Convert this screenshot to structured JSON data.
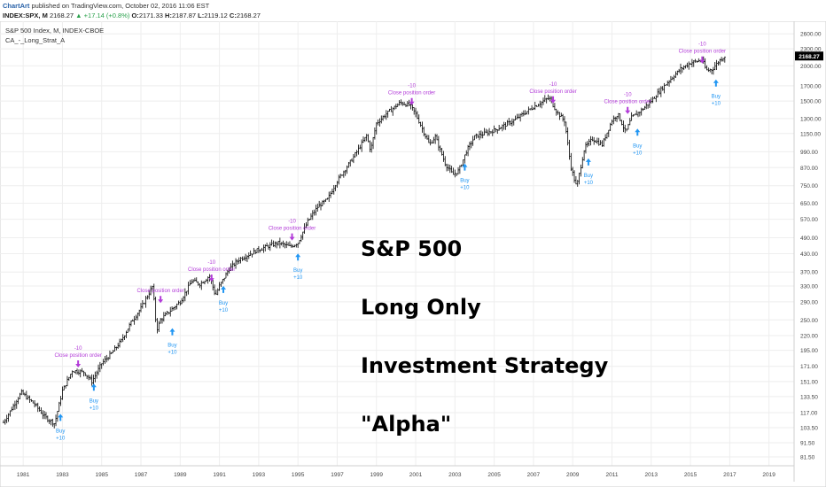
{
  "header": {
    "brand": "ChartArt",
    "published": " published on TradingView.com, October 02, 2016 11:06 EST",
    "symbol": "INDEX:SPX, M",
    "last": "2168.27",
    "change": "▲ +17.14 (+0.8%)",
    "o_label": "O:",
    "o": "2171.33",
    "h_label": "H:",
    "h": "2187.87",
    "l_label": "L:",
    "l": "2119.12",
    "c_label": "C:",
    "c": "2168.27"
  },
  "legend": {
    "line1": "S&P 500 Index, M, INDEX-CBOE",
    "line2": "CA_-_Long_Strat_A"
  },
  "overlay_text": [
    "S&P 500",
    "Long Only",
    "Investment Strategy",
    "\"Alpha\""
  ],
  "colors": {
    "bars": "#000000",
    "buy": "#2196f3",
    "close": "#b23bd8",
    "grid": "#eeeeee",
    "price_tag": "#000000"
  },
  "chart_data": {
    "type": "bar",
    "scale": "log",
    "ylim": [
      78,
      2800
    ],
    "xlim": [
      1980,
      2020.1
    ],
    "y_ticks": [
      "2600.00",
      "2300.00",
      "2000.00",
      "1700.00",
      "1500.00",
      "1300.00",
      "1150.00",
      "990.00",
      "870.00",
      "750.00",
      "650.00",
      "570.00",
      "490.00",
      "430.00",
      "370.00",
      "330.00",
      "290.00",
      "250.00",
      "220.00",
      "195.00",
      "171.00",
      "151.00",
      "133.50",
      "117.00",
      "103.50",
      "91.50",
      "81.50"
    ],
    "x_ticks": [
      "1981",
      "1983",
      "1985",
      "1987",
      "1989",
      "1991",
      "1993",
      "1995",
      "1997",
      "1999",
      "2001",
      "2003",
      "2005",
      "2007",
      "2009",
      "2011",
      "2013",
      "2015",
      "2017",
      "2019"
    ],
    "last_price_label": "2168.27",
    "series": [
      {
        "name": "S&P 500 Index",
        "anchors": [
          [
            1980.0,
            108
          ],
          [
            1980.9,
            138
          ],
          [
            1981.6,
            125
          ],
          [
            1982.1,
            113
          ],
          [
            1982.6,
            107
          ],
          [
            1983.0,
            140
          ],
          [
            1983.5,
            165
          ],
          [
            1984.1,
            163
          ],
          [
            1984.5,
            151
          ],
          [
            1985.0,
            175
          ],
          [
            1985.5,
            190
          ],
          [
            1986.0,
            211
          ],
          [
            1986.5,
            245
          ],
          [
            1987.0,
            275
          ],
          [
            1987.6,
            330
          ],
          [
            1987.8,
            230
          ],
          [
            1988.0,
            250
          ],
          [
            1988.5,
            270
          ],
          [
            1989.0,
            290
          ],
          [
            1989.6,
            345
          ],
          [
            1990.0,
            335
          ],
          [
            1990.5,
            358
          ],
          [
            1990.8,
            305
          ],
          [
            1991.0,
            330
          ],
          [
            1991.5,
            380
          ],
          [
            1992.0,
            410
          ],
          [
            1993.0,
            445
          ],
          [
            1994.0,
            470
          ],
          [
            1994.6,
            455
          ],
          [
            1995.0,
            470
          ],
          [
            1995.5,
            560
          ],
          [
            1996.0,
            630
          ],
          [
            1996.5,
            670
          ],
          [
            1997.0,
            780
          ],
          [
            1997.8,
            940
          ],
          [
            1998.5,
            1130
          ],
          [
            1998.7,
            1000
          ],
          [
            1999.0,
            1250
          ],
          [
            1999.5,
            1350
          ],
          [
            2000.2,
            1480
          ],
          [
            2000.7,
            1450
          ],
          [
            2001.0,
            1350
          ],
          [
            2001.7,
            1050
          ],
          [
            2002.0,
            1120
          ],
          [
            2002.5,
            900
          ],
          [
            2002.9,
            820
          ],
          [
            2003.2,
            850
          ],
          [
            2003.6,
            1000
          ],
          [
            2004.0,
            1120
          ],
          [
            2005.0,
            1180
          ],
          [
            2006.0,
            1280
          ],
          [
            2007.0,
            1430
          ],
          [
            2007.8,
            1540
          ],
          [
            2008.2,
            1370
          ],
          [
            2008.6,
            1270
          ],
          [
            2008.9,
            880
          ],
          [
            2009.2,
            740
          ],
          [
            2009.6,
            1020
          ],
          [
            2010.0,
            1100
          ],
          [
            2010.5,
            1050
          ],
          [
            2011.0,
            1280
          ],
          [
            2011.3,
            1350
          ],
          [
            2011.7,
            1160
          ],
          [
            2012.0,
            1310
          ],
          [
            2012.5,
            1390
          ],
          [
            2013.0,
            1500
          ],
          [
            2013.5,
            1650
          ],
          [
            2014.0,
            1800
          ],
          [
            2014.5,
            1950
          ],
          [
            2015.0,
            2050
          ],
          [
            2015.6,
            2100
          ],
          [
            2015.8,
            1930
          ],
          [
            2016.1,
            1940
          ],
          [
            2016.5,
            2100
          ],
          [
            2016.75,
            2168
          ]
        ]
      }
    ],
    "annotations": [
      {
        "type": "buy",
        "x": 1982.9,
        "y": 121,
        "labels": [
          "Buy",
          "+10"
        ]
      },
      {
        "type": "close",
        "x": 1983.8,
        "y": 167,
        "labels": [
          "-10",
          "Close position order"
        ]
      },
      {
        "type": "buy",
        "x": 1984.6,
        "y": 155,
        "labels": [
          "Buy",
          "+10"
        ]
      },
      {
        "type": "close",
        "x": 1988.0,
        "y": 283,
        "labels": [
          "Close position order"
        ]
      },
      {
        "type": "buy",
        "x": 1988.6,
        "y": 244,
        "labels": [
          "Buy",
          "+10"
        ]
      },
      {
        "type": "close",
        "x": 1990.6,
        "y": 337,
        "labels": [
          "-10",
          "Close position order"
        ]
      },
      {
        "type": "buy",
        "x": 1991.2,
        "y": 345,
        "labels": [
          "Buy",
          "+10"
        ]
      },
      {
        "type": "close",
        "x": 1994.7,
        "y": 472,
        "labels": [
          "-10",
          "Close position order"
        ]
      },
      {
        "type": "buy",
        "x": 1995.0,
        "y": 450,
        "labels": [
          "Buy",
          "+10"
        ]
      },
      {
        "type": "close",
        "x": 2000.8,
        "y": 1430,
        "labels": [
          "-10",
          "Close position order"
        ]
      },
      {
        "type": "buy",
        "x": 2003.5,
        "y": 940,
        "labels": [
          "Buy",
          "+10"
        ]
      },
      {
        "type": "close",
        "x": 2008.0,
        "y": 1450,
        "labels": [
          "-10",
          "Close position order"
        ]
      },
      {
        "type": "buy",
        "x": 2009.8,
        "y": 980,
        "labels": [
          "Buy",
          "+10"
        ]
      },
      {
        "type": "close",
        "x": 2011.8,
        "y": 1330,
        "labels": [
          "-10",
          "Close position order"
        ]
      },
      {
        "type": "buy",
        "x": 2012.3,
        "y": 1250,
        "labels": [
          "Buy",
          "+10"
        ]
      },
      {
        "type": "close",
        "x": 2015.6,
        "y": 2010,
        "labels": [
          "-10",
          "Close position order"
        ]
      },
      {
        "type": "buy",
        "x": 2016.3,
        "y": 1870,
        "labels": [
          "Buy",
          "+10"
        ]
      }
    ]
  }
}
